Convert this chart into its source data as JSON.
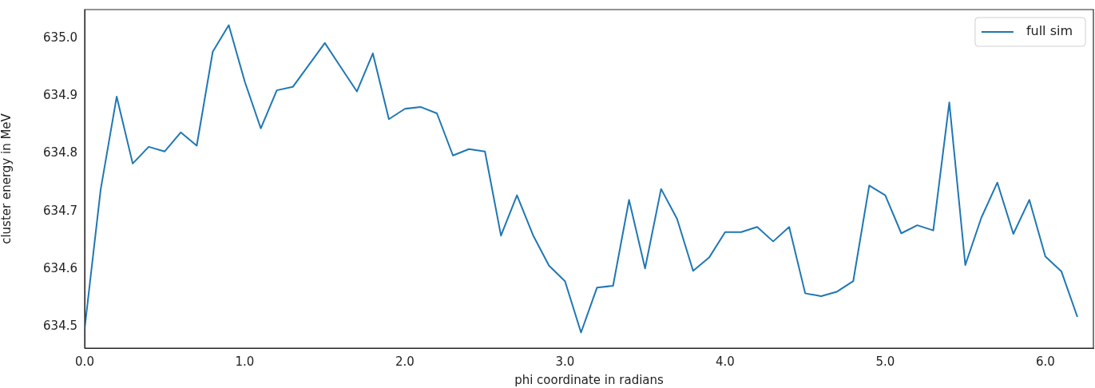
{
  "chart_data": {
    "type": "line",
    "xlabel": "phi coordinate in radians",
    "ylabel": "cluster energy in MeV",
    "legend": "top right",
    "grid": false,
    "marker": "none",
    "line_style": "solid",
    "xlim": [
      0,
      6.3
    ],
    "ylim": [
      634.463,
      635.05
    ],
    "xticks": [
      {
        "value": 0,
        "label": "0.0"
      },
      {
        "value": 1,
        "label": "1.0"
      },
      {
        "value": 2,
        "label": "2.0"
      },
      {
        "value": 3,
        "label": "3.0"
      },
      {
        "value": 4,
        "label": "4.0"
      },
      {
        "value": 5,
        "label": "5.0"
      },
      {
        "value": 6,
        "label": "6.0"
      }
    ],
    "yticks": [
      {
        "value": 634.5,
        "label": "634.5"
      },
      {
        "value": 634.6,
        "label": "634.6"
      },
      {
        "value": 634.7,
        "label": "634.7"
      },
      {
        "value": 634.8,
        "label": "634.8"
      },
      {
        "value": 634.9,
        "label": "634.9"
      },
      {
        "value": 635,
        "label": "635.0"
      }
    ],
    "x": [
      0,
      0.1,
      0.2,
      0.3,
      0.4,
      0.5,
      0.6,
      0.7,
      0.8,
      0.9,
      1.0,
      1.1,
      1.2,
      1.3,
      1.4,
      1.5,
      1.6,
      1.7,
      1.8,
      1.9,
      2.0,
      2.1,
      2.2,
      2.3,
      2.4,
      2.5,
      2.6,
      2.7,
      2.8,
      2.9,
      3.0,
      3.1,
      3.2,
      3.3,
      3.4,
      3.5,
      3.6,
      3.7,
      3.8,
      3.9,
      4.0,
      4.1,
      4.2,
      4.3,
      4.4,
      4.5,
      4.6,
      4.7,
      4.8,
      4.9,
      5.0,
      5.1,
      5.2,
      5.3,
      5.4,
      5.5,
      5.6,
      5.7,
      5.8,
      5.9,
      6.0,
      6.1,
      6.2
    ],
    "series": [
      {
        "name": "full sim",
        "color": "#1f77b4",
        "values": [
          634.497,
          634.738,
          634.899,
          634.783,
          634.812,
          634.804,
          634.837,
          634.814,
          634.977,
          635.023,
          634.925,
          634.844,
          634.91,
          634.916,
          634.954,
          634.992,
          634.95,
          634.908,
          634.974,
          634.86,
          634.878,
          634.881,
          634.87,
          634.797,
          634.808,
          634.804,
          634.658,
          634.728,
          634.659,
          634.606,
          634.579,
          634.49,
          634.568,
          634.571,
          634.72,
          634.601,
          634.739,
          634.687,
          634.597,
          634.62,
          634.664,
          634.664,
          634.673,
          634.648,
          634.673,
          634.558,
          634.553,
          634.561,
          634.579,
          634.745,
          634.728,
          634.662,
          634.676,
          634.667,
          634.889,
          634.607,
          634.689,
          634.75,
          634.661,
          634.72,
          634.622,
          634.596,
          634.517
        ]
      }
    ]
  }
}
